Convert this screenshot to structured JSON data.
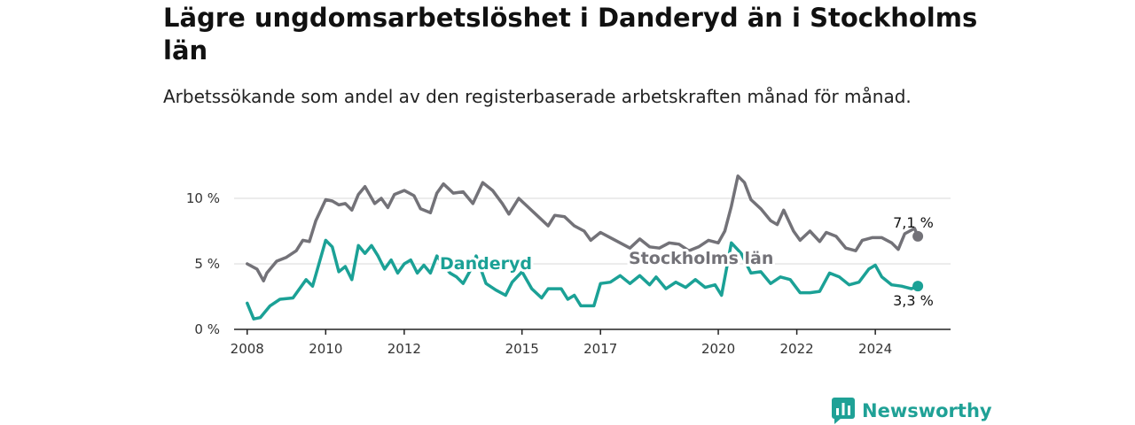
{
  "header": {
    "title": "Lägre ungdomsarbetslöshet i Danderyd än i Stockholms län",
    "subtitle": "Arbetssökande som andel av den registerbaserade arbetskraften månad för månad."
  },
  "branding": {
    "name": "Newsworthy",
    "icon": "newsworthy-chat-bar-icon",
    "color": "#1fa196"
  },
  "chart_data": {
    "type": "line",
    "title": "Lägre ungdomsarbetslöshet i Danderyd än i Stockholms län",
    "subtitle": "Arbetssökande som andel av den registerbaserade arbetskraften månad för månad.",
    "x_axis": {
      "type": "date",
      "range": [
        "2007-09",
        "2025-12"
      ],
      "ticks": [
        "2008",
        "2010",
        "2012",
        "2015",
        "2017",
        "2020",
        "2022",
        "2024"
      ]
    },
    "y_axis": {
      "range": [
        0,
        12
      ],
      "ticks": [
        0,
        5,
        10
      ],
      "tick_labels": [
        "0 %",
        "5 %",
        "10 %"
      ],
      "unit": "%"
    },
    "grid": true,
    "series": [
      {
        "name": "Stockholms län",
        "color": "#737278",
        "end_label": "7,1 %",
        "points": [
          [
            "2008-01",
            5.0
          ],
          [
            "2008-04",
            4.6
          ],
          [
            "2008-06",
            3.7
          ],
          [
            "2008-07",
            4.3
          ],
          [
            "2008-10",
            5.2
          ],
          [
            "2009-01",
            5.5
          ],
          [
            "2009-04",
            6.0
          ],
          [
            "2009-06",
            6.8
          ],
          [
            "2009-08",
            6.7
          ],
          [
            "2009-10",
            8.3
          ],
          [
            "2010-01",
            9.9
          ],
          [
            "2010-03",
            9.8
          ],
          [
            "2010-05",
            9.5
          ],
          [
            "2010-07",
            9.6
          ],
          [
            "2010-09",
            9.1
          ],
          [
            "2010-11",
            10.3
          ],
          [
            "2011-01",
            10.9
          ],
          [
            "2011-04",
            9.6
          ],
          [
            "2011-06",
            10.0
          ],
          [
            "2011-08",
            9.3
          ],
          [
            "2011-10",
            10.3
          ],
          [
            "2012-01",
            10.6
          ],
          [
            "2012-04",
            10.2
          ],
          [
            "2012-06",
            9.2
          ],
          [
            "2012-09",
            8.9
          ],
          [
            "2012-11",
            10.4
          ],
          [
            "2013-01",
            11.1
          ],
          [
            "2013-04",
            10.4
          ],
          [
            "2013-07",
            10.5
          ],
          [
            "2013-10",
            9.6
          ],
          [
            "2014-01",
            11.2
          ],
          [
            "2014-04",
            10.6
          ],
          [
            "2014-07",
            9.6
          ],
          [
            "2014-09",
            8.8
          ],
          [
            "2014-12",
            10.0
          ],
          [
            "2015-03",
            9.3
          ],
          [
            "2015-06",
            8.6
          ],
          [
            "2015-09",
            7.9
          ],
          [
            "2015-11",
            8.7
          ],
          [
            "2016-02",
            8.6
          ],
          [
            "2016-05",
            7.9
          ],
          [
            "2016-08",
            7.5
          ],
          [
            "2016-10",
            6.8
          ],
          [
            "2017-01",
            7.4
          ],
          [
            "2017-04",
            7.0
          ],
          [
            "2017-07",
            6.6
          ],
          [
            "2017-10",
            6.2
          ],
          [
            "2018-01",
            6.9
          ],
          [
            "2018-04",
            6.3
          ],
          [
            "2018-07",
            6.2
          ],
          [
            "2018-10",
            6.6
          ],
          [
            "2019-01",
            6.5
          ],
          [
            "2019-04",
            6.0
          ],
          [
            "2019-07",
            6.3
          ],
          [
            "2019-10",
            6.8
          ],
          [
            "2020-01",
            6.6
          ],
          [
            "2020-03",
            7.5
          ],
          [
            "2020-05",
            9.4
          ],
          [
            "2020-07",
            11.7
          ],
          [
            "2020-09",
            11.2
          ],
          [
            "2020-11",
            9.9
          ],
          [
            "2021-02",
            9.2
          ],
          [
            "2021-05",
            8.3
          ],
          [
            "2021-07",
            8.0
          ],
          [
            "2021-09",
            9.1
          ],
          [
            "2021-12",
            7.5
          ],
          [
            "2022-02",
            6.8
          ],
          [
            "2022-05",
            7.5
          ],
          [
            "2022-08",
            6.7
          ],
          [
            "2022-10",
            7.4
          ],
          [
            "2023-01",
            7.1
          ],
          [
            "2023-04",
            6.2
          ],
          [
            "2023-07",
            6.0
          ],
          [
            "2023-09",
            6.8
          ],
          [
            "2023-12",
            7.0
          ],
          [
            "2024-03",
            7.0
          ],
          [
            "2024-06",
            6.6
          ],
          [
            "2024-08",
            6.1
          ],
          [
            "2024-10",
            7.3
          ],
          [
            "2025-01",
            7.7
          ],
          [
            "2025-02",
            7.1
          ]
        ]
      },
      {
        "name": "Danderyd",
        "color": "#1ba196",
        "end_label": "3,3 %",
        "points": [
          [
            "2008-01",
            2.0
          ],
          [
            "2008-03",
            0.8
          ],
          [
            "2008-05",
            0.9
          ],
          [
            "2008-08",
            1.8
          ],
          [
            "2008-11",
            2.3
          ],
          [
            "2009-03",
            2.4
          ],
          [
            "2009-07",
            3.8
          ],
          [
            "2009-09",
            3.3
          ],
          [
            "2010-01",
            6.8
          ],
          [
            "2010-03",
            6.3
          ],
          [
            "2010-05",
            4.4
          ],
          [
            "2010-07",
            4.8
          ],
          [
            "2010-09",
            3.8
          ],
          [
            "2010-11",
            6.4
          ],
          [
            "2011-01",
            5.8
          ],
          [
            "2011-03",
            6.4
          ],
          [
            "2011-05",
            5.6
          ],
          [
            "2011-07",
            4.6
          ],
          [
            "2011-09",
            5.3
          ],
          [
            "2011-11",
            4.3
          ],
          [
            "2012-01",
            5.0
          ],
          [
            "2012-03",
            5.3
          ],
          [
            "2012-05",
            4.3
          ],
          [
            "2012-07",
            4.9
          ],
          [
            "2012-09",
            4.3
          ],
          [
            "2012-11",
            5.6
          ],
          [
            "2013-03",
            4.3
          ],
          [
            "2013-05",
            4.0
          ],
          [
            "2013-07",
            3.5
          ],
          [
            "2013-09",
            4.4
          ],
          [
            "2013-11",
            5.6
          ],
          [
            "2014-02",
            3.5
          ],
          [
            "2014-05",
            3.0
          ],
          [
            "2014-08",
            2.6
          ],
          [
            "2014-10",
            3.6
          ],
          [
            "2015-01",
            4.4
          ],
          [
            "2015-04",
            3.1
          ],
          [
            "2015-07",
            2.4
          ],
          [
            "2015-09",
            3.1
          ],
          [
            "2016-01",
            3.1
          ],
          [
            "2016-03",
            2.3
          ],
          [
            "2016-05",
            2.6
          ],
          [
            "2016-07",
            1.8
          ],
          [
            "2016-09",
            1.8
          ],
          [
            "2016-11",
            1.8
          ],
          [
            "2017-01",
            3.5
          ],
          [
            "2017-04",
            3.6
          ],
          [
            "2017-07",
            4.1
          ],
          [
            "2017-10",
            3.5
          ],
          [
            "2018-01",
            4.1
          ],
          [
            "2018-04",
            3.4
          ],
          [
            "2018-06",
            4.0
          ],
          [
            "2018-09",
            3.1
          ],
          [
            "2018-12",
            3.6
          ],
          [
            "2019-03",
            3.2
          ],
          [
            "2019-06",
            3.8
          ],
          [
            "2019-09",
            3.2
          ],
          [
            "2019-12",
            3.4
          ],
          [
            "2020-02",
            2.6
          ],
          [
            "2020-05",
            6.6
          ],
          [
            "2020-08",
            5.8
          ],
          [
            "2020-11",
            4.3
          ],
          [
            "2021-02",
            4.4
          ],
          [
            "2021-05",
            3.5
          ],
          [
            "2021-08",
            4.0
          ],
          [
            "2021-11",
            3.8
          ],
          [
            "2022-02",
            2.8
          ],
          [
            "2022-05",
            2.8
          ],
          [
            "2022-08",
            2.9
          ],
          [
            "2022-11",
            4.3
          ],
          [
            "2023-02",
            4.0
          ],
          [
            "2023-05",
            3.4
          ],
          [
            "2023-08",
            3.6
          ],
          [
            "2023-11",
            4.6
          ],
          [
            "2024-01",
            4.9
          ],
          [
            "2024-03",
            4.0
          ],
          [
            "2024-06",
            3.4
          ],
          [
            "2024-09",
            3.3
          ],
          [
            "2024-12",
            3.1
          ],
          [
            "2025-02",
            3.3
          ]
        ]
      }
    ]
  }
}
